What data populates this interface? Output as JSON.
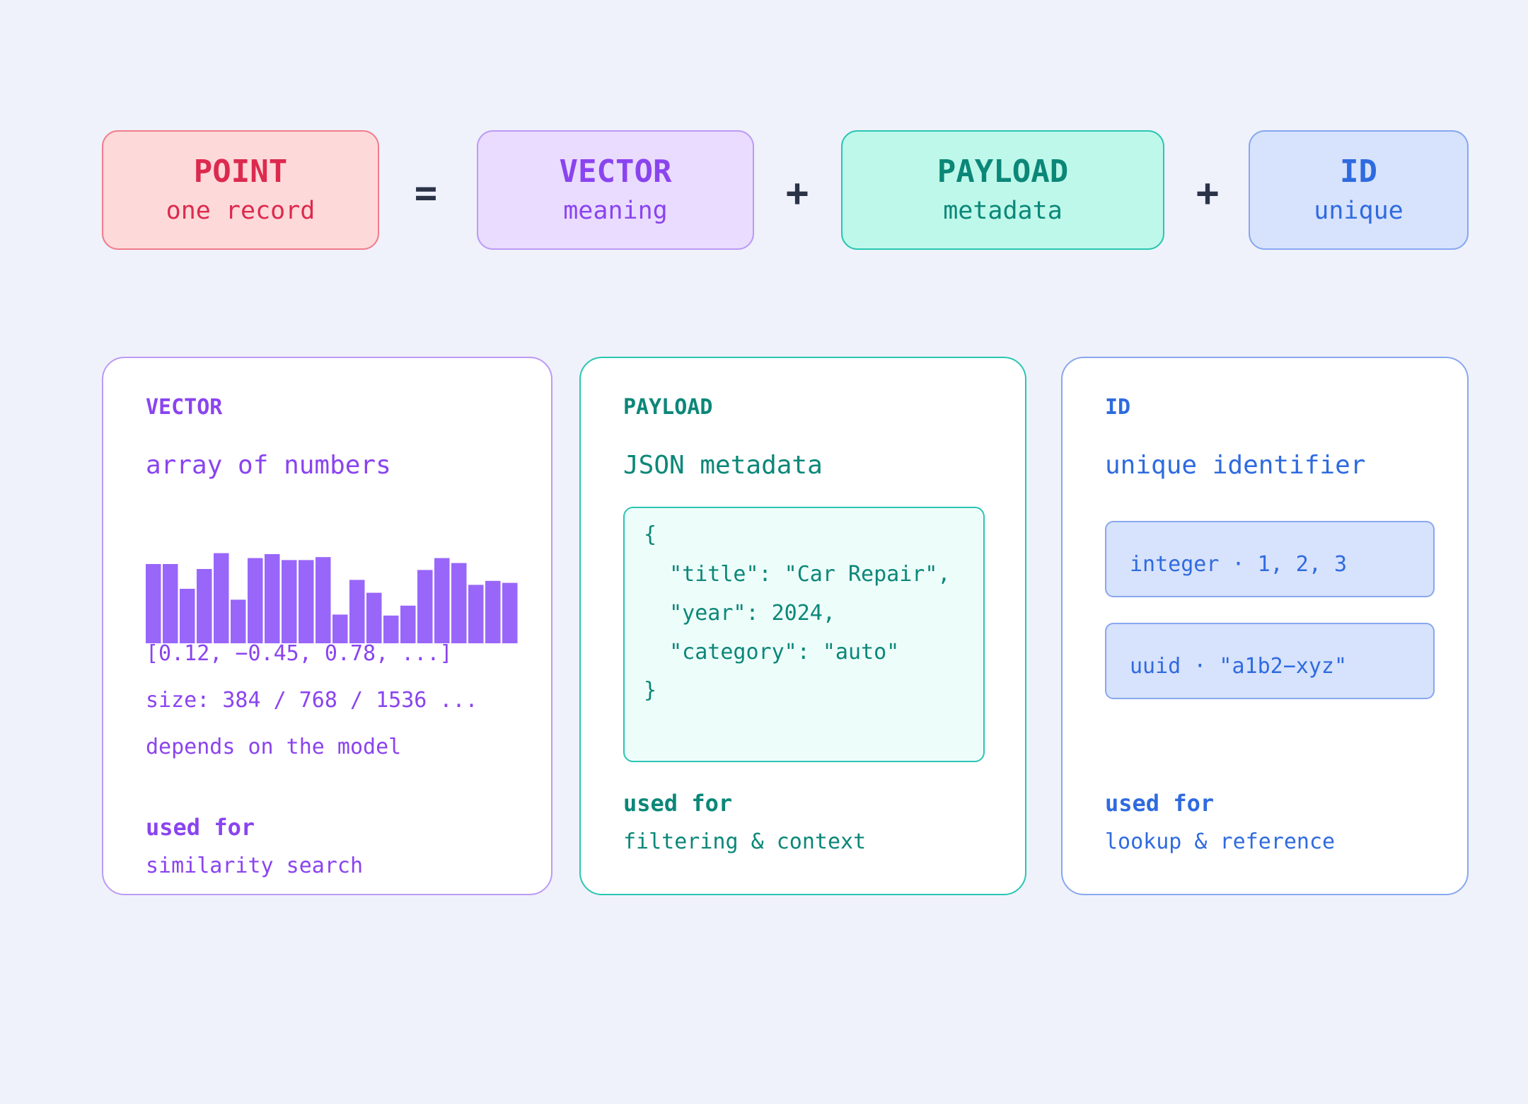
{
  "equation": {
    "point": {
      "title": "POINT",
      "subtitle": "one record"
    },
    "op1": "=",
    "vector": {
      "title": "VECTOR",
      "subtitle": "meaning"
    },
    "op2": "+",
    "payload": {
      "title": "PAYLOAD",
      "subtitle": "metadata"
    },
    "op3": "+",
    "id": {
      "title": "ID",
      "subtitle": "unique"
    }
  },
  "cards": {
    "vector": {
      "label": "VECTOR",
      "heading": "array of numbers",
      "bar_values": [
        0.8,
        0.8,
        0.55,
        0.75,
        0.91,
        0.44,
        0.86,
        0.9,
        0.84,
        0.84,
        0.87,
        0.29,
        0.64,
        0.51,
        0.28,
        0.38,
        0.74,
        0.86,
        0.81,
        0.59,
        0.63,
        0.61
      ],
      "sample": "[0.12, −0.45, 0.78, ...]",
      "size_line": "size: 384 / 768 / 1536 ...",
      "note": "depends on the model",
      "used_for_title": "used for",
      "used_for_text": "similarity search"
    },
    "payload": {
      "label": "PAYLOAD",
      "heading": "JSON metadata",
      "json_lines": [
        "{",
        "  \"title\": \"Car Repair\",",
        "  \"year\": 2024,",
        "  \"category\": \"auto\"",
        "}"
      ],
      "used_for_title": "used for",
      "used_for_text": "filtering & context"
    },
    "id": {
      "label": "ID",
      "heading": "unique identifier",
      "examples": [
        "integer · 1, 2, 3",
        "uuid · \"a1b2−xyz\""
      ],
      "used_for_title": "used for",
      "used_for_text": "lookup & reference"
    }
  },
  "colors": {
    "background": "#eff2fa",
    "point": "#dc2a4e",
    "vector": "#8a44ef",
    "payload": "#0b8778",
    "id": "#2f6bdf",
    "operator": "#2b3349",
    "bar_fill": "#9966fa"
  }
}
